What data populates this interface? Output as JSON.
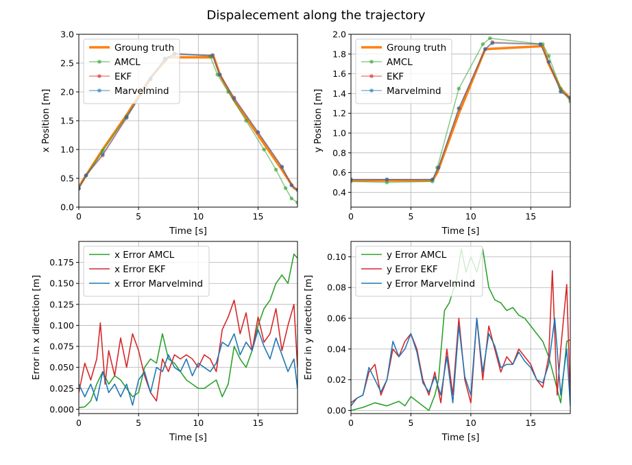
{
  "title": "Dispalecement along the trajectory",
  "colors": {
    "ground_truth": "#ff7f0e",
    "amcl": "#2ca02c",
    "ekf": "#d62728",
    "marvelmind": "#1f77b4"
  },
  "chart_data": [
    {
      "type": "line",
      "xlabel": "Time [s]",
      "ylabel": "x Position [m]",
      "xlim": [
        0,
        18.3
      ],
      "ylim": [
        0,
        3.0
      ],
      "xticks": [
        0,
        5,
        10,
        15
      ],
      "yticks": [
        0.0,
        0.5,
        1.0,
        1.5,
        2.0,
        2.5,
        3.0
      ],
      "grid": true,
      "legend": "top-left",
      "series": [
        {
          "name": "Groung truth",
          "color": "#ff7f0e",
          "marker": false,
          "x": [
            0,
            0.6,
            2.0,
            4.0,
            6.0,
            7.5,
            11.3,
            11.8,
            13.0,
            15.0,
            17.0,
            18.0,
            18.3
          ],
          "y": [
            0.35,
            0.55,
            1.0,
            1.6,
            2.25,
            2.6,
            2.6,
            2.3,
            1.85,
            1.25,
            0.65,
            0.33,
            0.3
          ]
        },
        {
          "name": "AMCL",
          "color": "#2ca02c",
          "marker": true,
          "x": [
            0,
            0.6,
            2.0,
            4.0,
            6.0,
            7.2,
            8.0,
            11.0,
            11.6,
            12.5,
            14.0,
            15.5,
            16.5,
            17.3,
            17.8,
            18.3
          ],
          "y": [
            0.33,
            0.55,
            0.98,
            1.58,
            2.22,
            2.55,
            2.67,
            2.62,
            2.3,
            2.0,
            1.5,
            1.0,
            0.65,
            0.33,
            0.15,
            0.08
          ]
        },
        {
          "name": "EKF",
          "color": "#d62728",
          "marker": true,
          "x": [
            0,
            0.6,
            2.0,
            4.0,
            6.0,
            7.2,
            8.0,
            11.2,
            11.8,
            13.0,
            15.0,
            17.0,
            17.8,
            18.3
          ],
          "y": [
            0.32,
            0.55,
            0.9,
            1.55,
            2.22,
            2.58,
            2.66,
            2.64,
            2.3,
            1.9,
            1.3,
            0.7,
            0.38,
            0.3
          ]
        },
        {
          "name": "Marvelmind",
          "color": "#1f77b4",
          "marker": true,
          "x": [
            0,
            0.6,
            2.0,
            4.0,
            6.0,
            7.2,
            8.0,
            11.2,
            11.8,
            13.0,
            15.0,
            17.0,
            17.8,
            18.3
          ],
          "y": [
            0.32,
            0.55,
            0.92,
            1.56,
            2.23,
            2.58,
            2.65,
            2.63,
            2.3,
            1.88,
            1.3,
            0.7,
            0.38,
            0.3
          ]
        }
      ]
    },
    {
      "type": "line",
      "xlabel": "Time [s]",
      "ylabel": "y Position [m]",
      "xlim": [
        0,
        18.3
      ],
      "ylim": [
        0.25,
        2.0
      ],
      "xticks": [
        0,
        5,
        10,
        15
      ],
      "yticks": [
        0.4,
        0.6,
        0.8,
        1.0,
        1.2,
        1.4,
        1.6,
        1.8,
        2.0
      ],
      "grid": true,
      "legend": "top-left",
      "series": [
        {
          "name": "Groung truth",
          "color": "#ff7f0e",
          "marker": false,
          "x": [
            0,
            6.8,
            7.2,
            9.0,
            11.2,
            16.0,
            16.5,
            17.5,
            18.3
          ],
          "y": [
            0.52,
            0.52,
            0.6,
            1.2,
            1.85,
            1.88,
            1.7,
            1.45,
            1.35
          ]
        },
        {
          "name": "AMCL",
          "color": "#2ca02c",
          "marker": true,
          "x": [
            0,
            3.0,
            6.8,
            7.2,
            9.0,
            11.0,
            11.6,
            16.0,
            16.5,
            17.5,
            18.3
          ],
          "y": [
            0.51,
            0.5,
            0.51,
            0.65,
            1.45,
            1.9,
            1.96,
            1.9,
            1.78,
            1.45,
            1.32
          ]
        },
        {
          "name": "EKF",
          "color": "#d62728",
          "marker": true,
          "x": [
            0,
            3.0,
            6.8,
            7.3,
            9.0,
            11.2,
            11.8,
            15.8,
            16.5,
            17.5,
            18.3
          ],
          "y": [
            0.53,
            0.53,
            0.53,
            0.65,
            1.25,
            1.85,
            1.92,
            1.9,
            1.72,
            1.42,
            1.35
          ]
        },
        {
          "name": "Marvelmind",
          "color": "#1f77b4",
          "marker": true,
          "x": [
            0,
            3.0,
            6.8,
            7.3,
            9.0,
            11.2,
            11.8,
            15.8,
            16.5,
            17.5,
            18.3
          ],
          "y": [
            0.53,
            0.53,
            0.53,
            0.65,
            1.25,
            1.85,
            1.91,
            1.9,
            1.72,
            1.42,
            1.36
          ]
        }
      ]
    },
    {
      "type": "line",
      "xlabel": "Time [s]",
      "ylabel": "Error in x direction [m]",
      "xlim": [
        0,
        18.3
      ],
      "ylim": [
        -0.005,
        0.2
      ],
      "xticks": [
        0,
        5,
        10,
        15
      ],
      "yticks": [
        0.0,
        0.025,
        0.05,
        0.075,
        0.1,
        0.125,
        0.15,
        0.175
      ],
      "ytick_labels": [
        "0.000",
        "0.025",
        "0.050",
        "0.075",
        "0.100",
        "0.125",
        "0.150",
        "0.175"
      ],
      "grid": true,
      "legend": "top-left",
      "series": [
        {
          "name": "x Error AMCL",
          "color": "#2ca02c",
          "marker": false,
          "x": [
            0,
            0.5,
            1.0,
            1.5,
            2.0,
            2.5,
            3.0,
            3.5,
            4.0,
            4.5,
            5.0,
            5.5,
            6.0,
            6.5,
            7.0,
            7.5,
            8.0,
            8.5,
            9.0,
            9.5,
            10.0,
            10.5,
            11.0,
            11.5,
            12.0,
            12.5,
            13.0,
            13.5,
            14.0,
            14.5,
            15.0,
            15.5,
            16.0,
            16.5,
            17.0,
            17.5,
            18.0,
            18.3
          ],
          "y": [
            0.002,
            0.003,
            0.01,
            0.03,
            0.045,
            0.03,
            0.04,
            0.035,
            0.025,
            0.015,
            0.02,
            0.05,
            0.06,
            0.055,
            0.09,
            0.06,
            0.055,
            0.045,
            0.035,
            0.03,
            0.025,
            0.025,
            0.03,
            0.035,
            0.015,
            0.03,
            0.075,
            0.06,
            0.05,
            0.07,
            0.1,
            0.12,
            0.13,
            0.15,
            0.16,
            0.15,
            0.185,
            0.18
          ]
        },
        {
          "name": "x Error EKF",
          "color": "#d62728",
          "marker": false,
          "x": [
            0,
            0.5,
            1.0,
            1.5,
            1.8,
            2.2,
            2.5,
            3.0,
            3.5,
            4.0,
            4.5,
            5.0,
            5.5,
            6.0,
            6.5,
            7.0,
            7.5,
            8.0,
            8.5,
            9.0,
            9.5,
            10.0,
            10.5,
            11.0,
            11.5,
            12.0,
            12.5,
            13.0,
            13.5,
            14.0,
            14.5,
            15.0,
            15.5,
            16.0,
            16.5,
            17.0,
            17.5,
            18.0,
            18.3
          ],
          "y": [
            0.02,
            0.055,
            0.035,
            0.06,
            0.103,
            0.03,
            0.07,
            0.04,
            0.085,
            0.05,
            0.09,
            0.07,
            0.04,
            0.02,
            0.01,
            0.06,
            0.045,
            0.065,
            0.06,
            0.065,
            0.06,
            0.05,
            0.065,
            0.06,
            0.045,
            0.095,
            0.11,
            0.13,
            0.09,
            0.115,
            0.07,
            0.11,
            0.08,
            0.09,
            0.12,
            0.07,
            0.1,
            0.125,
            0.05
          ]
        },
        {
          "name": "x Error Marvelmind",
          "color": "#1f77b4",
          "marker": false,
          "x": [
            0,
            0.5,
            1.0,
            1.5,
            2.0,
            2.5,
            3.0,
            3.5,
            4.0,
            4.5,
            5.0,
            5.5,
            6.0,
            6.5,
            7.0,
            7.5,
            8.0,
            8.5,
            9.0,
            9.5,
            10.0,
            10.5,
            11.0,
            11.5,
            12.0,
            12.5,
            13.0,
            13.5,
            14.0,
            14.5,
            15.0,
            15.5,
            16.0,
            16.5,
            17.0,
            17.5,
            18.0,
            18.3
          ],
          "y": [
            0.03,
            0.015,
            0.03,
            0.01,
            0.045,
            0.02,
            0.03,
            0.015,
            0.03,
            0.005,
            0.035,
            0.045,
            0.02,
            0.05,
            0.045,
            0.065,
            0.05,
            0.045,
            0.06,
            0.04,
            0.055,
            0.05,
            0.045,
            0.055,
            0.08,
            0.075,
            0.09,
            0.065,
            0.08,
            0.07,
            0.095,
            0.075,
            0.06,
            0.085,
            0.065,
            0.045,
            0.06,
            0.025
          ]
        }
      ]
    },
    {
      "type": "line",
      "xlabel": "Time [s]",
      "ylabel": "Error in y direction [m]",
      "xlim": [
        0,
        18.3
      ],
      "ylim": [
        -0.002,
        0.11
      ],
      "xticks": [
        0,
        5,
        10,
        15
      ],
      "yticks": [
        0.0,
        0.02,
        0.04,
        0.06,
        0.08,
        0.1
      ],
      "ytick_labels": [
        "0.00",
        "0.02",
        "0.04",
        "0.06",
        "0.08",
        "0.10"
      ],
      "grid": true,
      "legend": "top-left",
      "series": [
        {
          "name": "y Error AMCL",
          "color": "#2ca02c",
          "marker": false,
          "x": [
            0,
            1.0,
            2.0,
            3.0,
            4.0,
            4.5,
            5.0,
            5.5,
            6.0,
            6.5,
            7.0,
            7.3,
            7.8,
            8.2,
            8.8,
            9.2,
            9.6,
            10.0,
            10.5,
            11.0,
            11.5,
            12.0,
            12.5,
            13.0,
            13.5,
            14.0,
            14.5,
            15.0,
            15.5,
            16.0,
            16.5,
            17.0,
            17.5,
            18.0,
            18.3
          ],
          "y": [
            0.0,
            0.002,
            0.005,
            0.003,
            0.006,
            0.003,
            0.009,
            0.006,
            0.003,
            0.0,
            0.01,
            0.02,
            0.065,
            0.07,
            0.085,
            0.105,
            0.09,
            0.1,
            0.09,
            0.105,
            0.08,
            0.072,
            0.07,
            0.065,
            0.067,
            0.062,
            0.06,
            0.055,
            0.05,
            0.045,
            0.035,
            0.02,
            0.005,
            0.045,
            0.046
          ]
        },
        {
          "name": "y Error EKF",
          "color": "#d62728",
          "marker": false,
          "x": [
            0,
            0.5,
            1.0,
            1.5,
            2.0,
            2.5,
            3.0,
            3.5,
            4.0,
            4.5,
            5.0,
            5.5,
            6.0,
            6.5,
            7.0,
            7.5,
            8.0,
            8.5,
            9.0,
            9.5,
            10.0,
            10.5,
            11.0,
            11.5,
            12.0,
            12.5,
            13.0,
            13.5,
            14.0,
            14.5,
            15.0,
            15.5,
            16.0,
            16.5,
            16.8,
            17.2,
            17.5,
            18.0,
            18.3
          ],
          "y": [
            0.005,
            0.008,
            0.01,
            0.025,
            0.03,
            0.01,
            0.02,
            0.04,
            0.035,
            0.045,
            0.05,
            0.04,
            0.02,
            0.01,
            0.025,
            0.005,
            0.04,
            0.01,
            0.06,
            0.02,
            0.005,
            0.06,
            0.02,
            0.055,
            0.04,
            0.025,
            0.035,
            0.03,
            0.04,
            0.035,
            0.03,
            0.02,
            0.015,
            0.035,
            0.091,
            0.01,
            0.04,
            0.082,
            0.005
          ]
        },
        {
          "name": "y Error Marvelmind",
          "color": "#1f77b4",
          "marker": false,
          "x": [
            0,
            0.5,
            1.0,
            1.5,
            2.0,
            2.5,
            3.0,
            3.5,
            4.0,
            4.5,
            5.0,
            5.5,
            6.0,
            6.5,
            7.0,
            7.5,
            8.0,
            8.5,
            9.0,
            9.5,
            10.0,
            10.5,
            11.0,
            11.5,
            12.0,
            12.5,
            13.0,
            13.5,
            14.0,
            14.5,
            15.0,
            15.5,
            16.0,
            16.5,
            17.0,
            17.5,
            18.0,
            18.3
          ],
          "y": [
            0.003,
            0.008,
            0.01,
            0.028,
            0.02,
            0.012,
            0.02,
            0.045,
            0.035,
            0.04,
            0.05,
            0.038,
            0.018,
            0.012,
            0.022,
            0.01,
            0.035,
            0.005,
            0.055,
            0.022,
            0.01,
            0.06,
            0.025,
            0.05,
            0.042,
            0.028,
            0.03,
            0.03,
            0.038,
            0.032,
            0.028,
            0.02,
            0.018,
            0.03,
            0.06,
            0.01,
            0.04,
            0.003
          ]
        }
      ]
    }
  ]
}
